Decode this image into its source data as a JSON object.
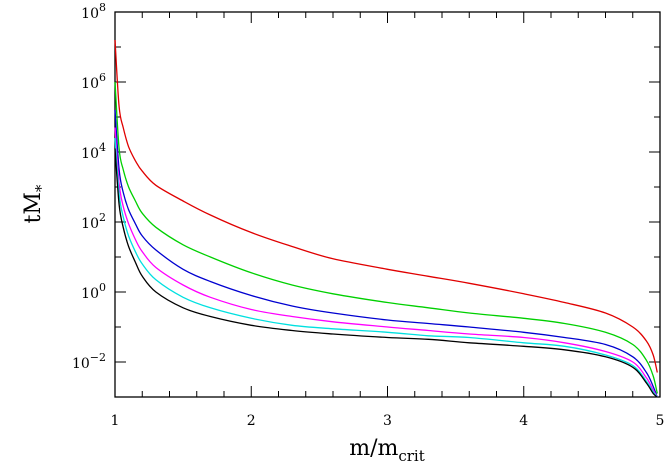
{
  "chart_data": {
    "type": "line",
    "xlabel": {
      "base": "m/m",
      "sub": "crit"
    },
    "ylabel": {
      "base": "tM",
      "sub": "*"
    },
    "xlim": [
      1,
      5
    ],
    "ylim_log10": [
      -3,
      8
    ],
    "yscale": "log",
    "grid": false,
    "legend": "none",
    "x_ticks": [
      1,
      2,
      3,
      4,
      5
    ],
    "y_ticks": [
      {
        "base": "10",
        "exp": "8"
      },
      {
        "base": "10",
        "exp": "6"
      },
      {
        "base": "10",
        "exp": "4"
      },
      {
        "base": "10",
        "exp": "2"
      },
      {
        "base": "10",
        "exp": "0"
      },
      {
        "base": "10",
        "exp": "−2"
      }
    ],
    "y_tick_values_log10": [
      8,
      6,
      4,
      2,
      0,
      -2
    ],
    "series": [
      {
        "color": "#e00000",
        "x": [
          1.0,
          1.03,
          1.06,
          1.1,
          1.15,
          1.2,
          1.3,
          1.5,
          1.7,
          2.0,
          2.3,
          2.6,
          3.0,
          3.3,
          3.6,
          4.0,
          4.3,
          4.6,
          4.8,
          4.9,
          4.95,
          4.98
        ],
        "log10y": [
          7.2,
          5.3,
          4.7,
          4.15,
          3.75,
          3.45,
          3.05,
          2.6,
          2.2,
          1.7,
          1.3,
          0.95,
          0.65,
          0.45,
          0.25,
          -0.05,
          -0.3,
          -0.6,
          -1.0,
          -1.4,
          -1.8,
          -2.3
        ]
      },
      {
        "color": "#00d000",
        "x": [
          1.0,
          1.03,
          1.06,
          1.1,
          1.15,
          1.2,
          1.3,
          1.5,
          1.7,
          2.0,
          2.3,
          2.6,
          3.0,
          3.3,
          3.6,
          4.0,
          4.3,
          4.6,
          4.8,
          4.9,
          4.95,
          4.98
        ],
        "log10y": [
          6.0,
          4.1,
          3.5,
          3.0,
          2.6,
          2.25,
          1.85,
          1.35,
          1.0,
          0.55,
          0.2,
          -0.05,
          -0.3,
          -0.45,
          -0.6,
          -0.75,
          -0.9,
          -1.15,
          -1.5,
          -1.95,
          -2.4,
          -2.9
        ]
      },
      {
        "color": "#0000d0",
        "x": [
          1.0,
          1.03,
          1.06,
          1.1,
          1.15,
          1.2,
          1.3,
          1.5,
          1.7,
          2.0,
          2.3,
          2.6,
          3.0,
          3.3,
          3.6,
          4.0,
          4.3,
          4.6,
          4.8,
          4.9,
          4.95,
          4.98
        ],
        "log10y": [
          5.2,
          3.5,
          2.85,
          2.35,
          1.95,
          1.6,
          1.2,
          0.65,
          0.3,
          -0.1,
          -0.4,
          -0.6,
          -0.8,
          -0.9,
          -1.0,
          -1.15,
          -1.3,
          -1.5,
          -1.85,
          -2.3,
          -2.7,
          -3.0
        ]
      },
      {
        "color": "#ff00ff",
        "x": [
          1.0,
          1.03,
          1.06,
          1.1,
          1.15,
          1.2,
          1.3,
          1.5,
          1.7,
          2.0,
          2.3,
          2.6,
          3.0,
          3.3,
          3.6,
          4.0,
          4.3,
          4.6,
          4.8,
          4.9,
          4.95,
          4.98
        ],
        "log10y": [
          4.7,
          3.1,
          2.45,
          1.95,
          1.5,
          1.15,
          0.7,
          0.2,
          -0.15,
          -0.5,
          -0.7,
          -0.85,
          -1.0,
          -1.1,
          -1.2,
          -1.3,
          -1.45,
          -1.7,
          -2.0,
          -2.45,
          -2.8,
          -3.0
        ]
      },
      {
        "color": "#00e0e0",
        "x": [
          1.0,
          1.03,
          1.06,
          1.1,
          1.15,
          1.2,
          1.3,
          1.5,
          1.7,
          2.0,
          2.3,
          2.6,
          3.0,
          3.3,
          3.6,
          4.0,
          4.3,
          4.6,
          4.8,
          4.9,
          4.95,
          4.98
        ],
        "log10y": [
          4.4,
          2.8,
          2.15,
          1.6,
          1.15,
          0.8,
          0.35,
          -0.15,
          -0.45,
          -0.75,
          -0.95,
          -1.05,
          -1.15,
          -1.25,
          -1.3,
          -1.45,
          -1.55,
          -1.8,
          -2.1,
          -2.55,
          -2.85,
          -3.0
        ]
      },
      {
        "color": "#000000",
        "x": [
          1.0,
          1.03,
          1.06,
          1.1,
          1.15,
          1.2,
          1.3,
          1.5,
          1.7,
          2.0,
          2.3,
          2.6,
          3.0,
          3.3,
          3.6,
          4.0,
          4.3,
          4.6,
          4.8,
          4.9,
          4.95,
          4.98
        ],
        "log10y": [
          4.1,
          2.5,
          1.85,
          1.3,
          0.85,
          0.45,
          0.0,
          -0.45,
          -0.7,
          -0.95,
          -1.1,
          -1.2,
          -1.3,
          -1.35,
          -1.45,
          -1.55,
          -1.65,
          -1.85,
          -2.15,
          -2.6,
          -2.9,
          -3.0
        ]
      }
    ]
  }
}
